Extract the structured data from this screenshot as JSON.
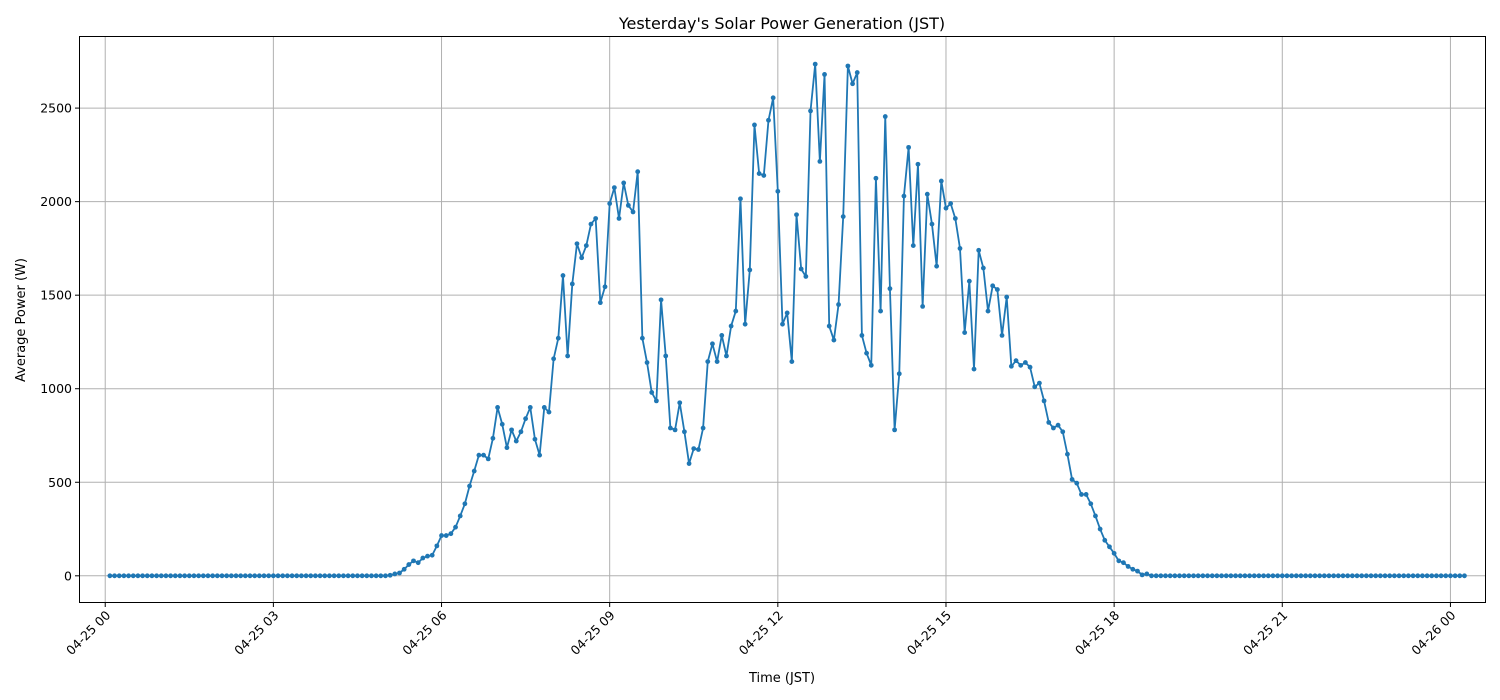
{
  "chart_data": {
    "type": "line",
    "title": "Yesterday's Solar Power Generation (JST)",
    "xlabel": "Time (JST)",
    "ylabel": "Average Power (W)",
    "x_start": "2025-04-25 00:05",
    "x_step_minutes": 5,
    "xlim": [
      "2025-04-24 23:33",
      "2025-04-26 00:37"
    ],
    "ylim": [
      -140,
      2880
    ],
    "grid": true,
    "xticks": [
      {
        "label": "04-25 00",
        "time": "2025-04-25 00:00"
      },
      {
        "label": "04-25 03",
        "time": "2025-04-25 03:00"
      },
      {
        "label": "04-25 06",
        "time": "2025-04-25 06:00"
      },
      {
        "label": "04-25 09",
        "time": "2025-04-25 09:00"
      },
      {
        "label": "04-25 12",
        "time": "2025-04-25 12:00"
      },
      {
        "label": "04-25 15",
        "time": "2025-04-25 15:00"
      },
      {
        "label": "04-25 18",
        "time": "2025-04-25 18:00"
      },
      {
        "label": "04-25 21",
        "time": "2025-04-25 21:00"
      },
      {
        "label": "04-26 00",
        "time": "2025-04-26 00:00"
      }
    ],
    "yticks": [
      {
        "label": "0",
        "value": 0
      },
      {
        "label": "500",
        "value": 500
      },
      {
        "label": "1000",
        "value": 1000
      },
      {
        "label": "1500",
        "value": 1500
      },
      {
        "label": "2000",
        "value": 2000
      },
      {
        "label": "2500",
        "value": 2500
      }
    ],
    "series": [
      {
        "color": "#1f77b4",
        "values": [
          0,
          0,
          0,
          0,
          0,
          0,
          0,
          0,
          0,
          0,
          0,
          0,
          0,
          0,
          0,
          0,
          0,
          0,
          0,
          0,
          0,
          0,
          0,
          0,
          0,
          0,
          0,
          0,
          0,
          0,
          0,
          0,
          0,
          0,
          0,
          0,
          0,
          0,
          0,
          0,
          0,
          0,
          0,
          0,
          0,
          0,
          0,
          0,
          0,
          0,
          0,
          0,
          0,
          0,
          0,
          0,
          0,
          0,
          0,
          0,
          3,
          10,
          15,
          35,
          60,
          80,
          70,
          95,
          105,
          110,
          160,
          215,
          215,
          225,
          260,
          320,
          385,
          480,
          560,
          645,
          645,
          625,
          735,
          900,
          810,
          685,
          780,
          720,
          770,
          840,
          900,
          730,
          645,
          900,
          875,
          1160,
          1270,
          1605,
          1175,
          1560,
          1775,
          1700,
          1765,
          1880,
          1910,
          1460,
          1545,
          1990,
          2075,
          1910,
          2100,
          1980,
          1945,
          2160,
          1270,
          1140,
          980,
          935,
          1475,
          1175,
          790,
          780,
          925,
          770,
          600,
          680,
          675,
          790,
          1145,
          1240,
          1145,
          1285,
          1175,
          1335,
          1415,
          2015,
          1345,
          1635,
          2410,
          2150,
          2140,
          2435,
          2555,
          2055,
          1345,
          1405,
          1145,
          1930,
          1640,
          1600,
          2485,
          2735,
          2215,
          2680,
          1335,
          1260,
          1450,
          1920,
          2725,
          2630,
          2690,
          1285,
          1190,
          1125,
          2125,
          1415,
          2455,
          1535,
          780,
          1080,
          2030,
          2290,
          1765,
          2200,
          1440,
          2040,
          1880,
          1655,
          2110,
          1965,
          1990,
          1910,
          1750,
          1300,
          1575,
          1105,
          1740,
          1645,
          1415,
          1550,
          1530,
          1285,
          1490,
          1120,
          1150,
          1125,
          1140,
          1115,
          1010,
          1030,
          935,
          820,
          790,
          805,
          770,
          650,
          515,
          495,
          435,
          435,
          385,
          320,
          250,
          190,
          155,
          120,
          80,
          70,
          50,
          35,
          25,
          5,
          10,
          0,
          0,
          0,
          0,
          0,
          0,
          0,
          0,
          0,
          0,
          0,
          0,
          0,
          0,
          0,
          0,
          0,
          0,
          0,
          0,
          0,
          0,
          0,
          0,
          0,
          0,
          0,
          0,
          0,
          0,
          0,
          0,
          0,
          0,
          0,
          0,
          0,
          0,
          0,
          0,
          0,
          0,
          0,
          0,
          0,
          0,
          0,
          0,
          0,
          0,
          0,
          0,
          0,
          0,
          0,
          0,
          0,
          0,
          0,
          0,
          0,
          0,
          0,
          0,
          0,
          0,
          0,
          0
        ]
      }
    ]
  }
}
